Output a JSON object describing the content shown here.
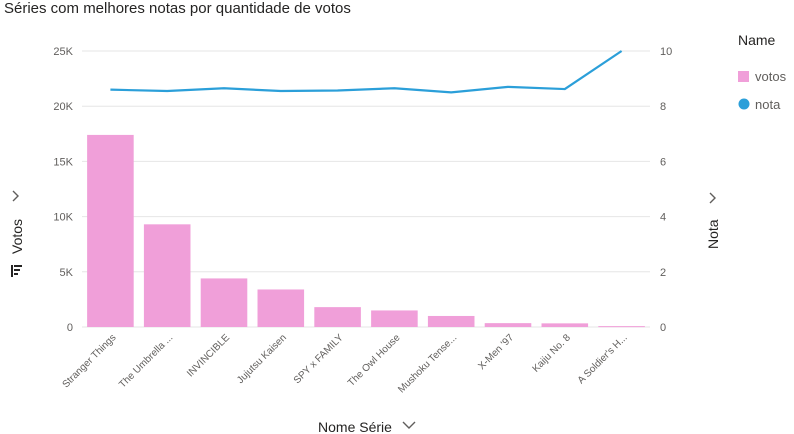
{
  "title": "Séries com melhores notas por quantidade de votos",
  "legend": {
    "title": "Name",
    "items": [
      {
        "label": "votos",
        "color": "#f09fd9",
        "shape": "square"
      },
      {
        "label": "nota",
        "color": "#2b9fd9",
        "shape": "circle"
      }
    ]
  },
  "icons": {
    "y_axis_chevron": "chevron-right-icon",
    "secondary_axis_chevron": "chevron-right-icon",
    "x_axis_chevron": "chevron-down-icon",
    "sort_icon": "sort-icon"
  },
  "chart_data": {
    "type": "bar+line",
    "title": "Séries com melhores notas por quantidade de votos",
    "xlabel": "Nome Série",
    "ylabel": "Votos",
    "y2label": "Nota",
    "ylim": [
      0,
      25000
    ],
    "y2lim": [
      0,
      10
    ],
    "y_ticks": [
      "0",
      "5K",
      "10K",
      "15K",
      "20K",
      "25K"
    ],
    "y2_ticks": [
      "0",
      "2",
      "4",
      "6",
      "8",
      "10"
    ],
    "grid": true,
    "legend_position": "top-right",
    "categories": [
      "Stranger Things",
      "The Umbrella ...",
      "INVINCIBLE",
      "Jujutsu Kaisen",
      "SPY x FAMILY",
      "The Owl House",
      "Mushoku Tense...",
      "X-Men '97",
      "Kaiju No. 8",
      "A Soldier's H..."
    ],
    "series": [
      {
        "name": "votos",
        "type": "bar",
        "axis": "left",
        "color": "#f09fd9",
        "values": [
          17400,
          9300,
          4400,
          3400,
          1800,
          1500,
          1000,
          350,
          330,
          80
        ]
      },
      {
        "name": "nota",
        "type": "line",
        "axis": "right",
        "color": "#2b9fd9",
        "values": [
          8.6,
          8.55,
          8.65,
          8.55,
          8.57,
          8.65,
          8.5,
          8.7,
          8.62,
          10.0
        ]
      }
    ]
  }
}
